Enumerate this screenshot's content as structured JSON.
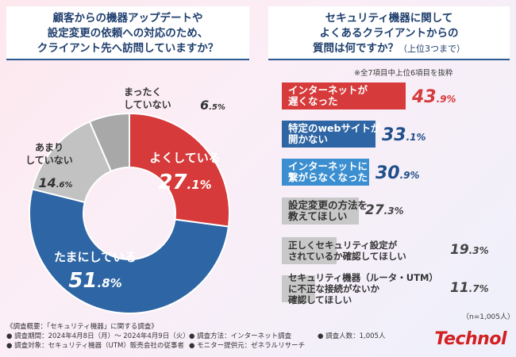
{
  "colors": {
    "red": "#d63a3a",
    "blue": "#2e65a4",
    "lightblue": "#3b8fd1",
    "gray": "#c2c2c2",
    "darkgray": "#a8a8a8",
    "navy": "#1f3f6e"
  },
  "question1": {
    "line1": "顧客からの機器アップデートや",
    "line2": "設定変更の依頼への対応のため、",
    "line3": "クライアント先へ訪問していますか？"
  },
  "question2": {
    "line1": "セキュリティ機器に関して",
    "line2": "よくあるクライアントからの",
    "line3": "質問は何ですか？",
    "sub": "（上位3つまで）"
  },
  "note": "※全7項目中上位6項目を抜粋",
  "sample_size": "（n=1,005人）",
  "footer": {
    "col1": [
      "《調査概要：「セキュリティ機器」に関する調査》",
      "● 調査期間：2024年4月8日（月）～ 2024年4月9日（火）",
      "● 調査対象：セキュリティ機器（UTM）販売会社の従事者"
    ],
    "col2": [
      "● 調査方法：インターネット調査",
      "● モニター提供元：ゼネラルリサーチ"
    ],
    "col3": [
      "● 調査人数：1,005人"
    ]
  },
  "logo": "Technol",
  "chart_data": [
    {
      "type": "pie",
      "title": "顧客からの機器アップデートや設定変更の依頼への対応のため、クライアント先へ訪問していますか？",
      "slices": [
        {
          "label_lines": [
            "よくしている"
          ],
          "value": 27.1,
          "value_big": "27",
          "value_small": ".1",
          "color": "#d63a3a"
        },
        {
          "label_lines": [
            "たまにしている"
          ],
          "value": 51.8,
          "value_big": "51",
          "value_small": ".8",
          "color": "#2e65a4"
        },
        {
          "label_lines": [
            "あまり",
            "していない"
          ],
          "value": 14.6,
          "value_big": "14",
          "value_small": ".6",
          "color": "#c2c2c2"
        },
        {
          "label_lines": [
            "まったく",
            "していない"
          ],
          "value": 6.5,
          "value_big": "6",
          "value_small": ".5",
          "color": "#a8a8a8"
        }
      ]
    },
    {
      "type": "bar",
      "orientation": "horizontal",
      "title": "セキュリティ機器に関してよくあるクライアントからの質問は何ですか？（上位3つまで）",
      "xlim": [
        0,
        100
      ],
      "bars": [
        {
          "label_lines": [
            "インターネットが",
            "遅くなった"
          ],
          "value": 43.9,
          "value_big": "43",
          "value_small": ".9",
          "color": "#d63a3a"
        },
        {
          "label_lines": [
            "特定のwebサイトが",
            "開かない"
          ],
          "value": 33.1,
          "value_big": "33",
          "value_small": ".1",
          "color": "#2e65a4"
        },
        {
          "label_lines": [
            "インターネットに",
            "繋がらなくなった"
          ],
          "value": 30.9,
          "value_big": "30",
          "value_small": ".9",
          "color": "#3b8fd1"
        },
        {
          "label_lines": [
            "設定変更の方法を",
            "教えてほしい"
          ],
          "value": 27.3,
          "value_big": "27",
          "value_small": ".3",
          "color": "#c8c8c8"
        },
        {
          "label_lines": [
            "正しくセキュリティ設定が",
            "されているか確認してほしい"
          ],
          "value": 19.3,
          "value_big": "19",
          "value_small": ".3",
          "color": "#c8c8c8"
        },
        {
          "label_lines": [
            "セキュリティ機器（ルータ・UTM）",
            "に不正な接続がないか",
            "確認してほしい"
          ],
          "value": 11.7,
          "value_big": "11",
          "value_small": ".7",
          "color": "#c8c8c8"
        }
      ]
    }
  ]
}
